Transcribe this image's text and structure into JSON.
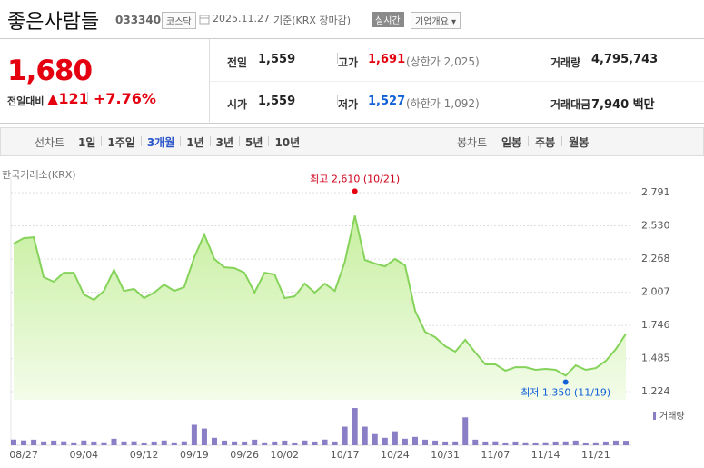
{
  "header": {
    "name": "좋은사람들",
    "code": "033340",
    "market": "코스닥",
    "date": "2025.11.27",
    "basis": "기준(KRX 장마감)",
    "realtime": "실시간",
    "overview": "기업개요"
  },
  "quote": {
    "price": "1,680",
    "change_label": "전일대비",
    "change": "121",
    "change_pct": "+7.76%",
    "stats": [
      {
        "label": "전일",
        "value": "1,559"
      },
      {
        "label": "고가",
        "value": "1,691",
        "note": "(상한가 2,025)",
        "color": "#e4000f"
      },
      {
        "label": "거래량",
        "value": "4,795,743"
      },
      {
        "label": "시가",
        "value": "1,559"
      },
      {
        "label": "저가",
        "value": "1,527",
        "note": "(하한가 1,092)",
        "color": "#1160d6"
      },
      {
        "label": "거래대금",
        "value": "7,940 백만"
      }
    ]
  },
  "tabs": {
    "line_label": "선차트",
    "periods": [
      "1일",
      "1주일",
      "3개월",
      "1년",
      "3년",
      "5년",
      "10년"
    ],
    "selected": 2,
    "candle_label": "봉차트",
    "candles": [
      "일봉",
      "주봉",
      "월봉"
    ]
  },
  "chart_data": [
    {
      "type": "area",
      "source": "한국거래소(KRX)",
      "color": "#85d35a",
      "fill": "#d6f3c2",
      "categories": [
        null,
        "08/27",
        null,
        null,
        null,
        null,
        null,
        "09/04",
        null,
        null,
        null,
        null,
        null,
        "09/12",
        null,
        null,
        null,
        null,
        "09/19",
        null,
        null,
        null,
        null,
        "09/26",
        null,
        null,
        null,
        "10/02",
        null,
        null,
        null,
        null,
        null,
        "10/17",
        null,
        null,
        null,
        null,
        "10/24",
        null,
        null,
        null,
        null,
        "10/31",
        null,
        null,
        null,
        null,
        "11/07",
        null,
        null,
        null,
        null,
        "11/14",
        null,
        null,
        null,
        null,
        "11/21",
        null,
        null,
        null
      ],
      "values": [
        2390,
        2433,
        2440,
        2126,
        2090,
        2161,
        2161,
        1990,
        1947,
        2018,
        2183,
        2018,
        2033,
        1961,
        2004,
        2068,
        2018,
        2047,
        2283,
        2462,
        2269,
        2204,
        2197,
        2161,
        2004,
        2161,
        2147,
        1961,
        1975,
        2075,
        2004,
        2075,
        2018,
        2247,
        2610,
        2261,
        2233,
        2211,
        2269,
        2219,
        1861,
        1696,
        1653,
        1582,
        1539,
        1632,
        1532,
        1439,
        1439,
        1389,
        1417,
        1417,
        1396,
        1403,
        1396,
        1350,
        1431,
        1396,
        1410,
        1467,
        1560,
        1680
      ],
      "max_label": "최고 2,610 (10/21)",
      "min_label": "최저 1,350 (11/19)",
      "ylim": [
        1160,
        2877
      ],
      "yticks": [
        {
          "value": 2791,
          "label": "2,791"
        },
        {
          "value": 2530,
          "label": "2,530"
        },
        {
          "value": 2268,
          "label": "2,268"
        },
        {
          "value": 2007,
          "label": "2,007"
        },
        {
          "value": 1746,
          "label": "1,746"
        },
        {
          "value": 1485,
          "label": "1,485"
        },
        {
          "value": 1224,
          "label": "1,224"
        }
      ],
      "grid": true
    },
    {
      "type": "bar",
      "legend": "거래량",
      "color": "#8a7fc6",
      "values": [
        6100000,
        5200000,
        6000000,
        4100000,
        5000000,
        4200000,
        3100000,
        5100000,
        4000000,
        3200000,
        7000000,
        4100000,
        4200000,
        3000000,
        4000000,
        5100000,
        3100000,
        4200000,
        22000000,
        18000000,
        8000000,
        5000000,
        4100000,
        4000000,
        6000000,
        3100000,
        4000000,
        5000000,
        3000000,
        5100000,
        4000000,
        6100000,
        4000000,
        20000000,
        40000000,
        20000000,
        12000000,
        8000000,
        15000000,
        7000000,
        9000000,
        6000000,
        5000000,
        4000000,
        4100000,
        30000000,
        6000000,
        4000000,
        4200000,
        3000000,
        4000000,
        3100000,
        3000000,
        3200000,
        4000000,
        4100000,
        5000000,
        3000000,
        3100000,
        4000000,
        5000000,
        4795743
      ],
      "ylim": [
        0,
        42000000
      ]
    }
  ]
}
